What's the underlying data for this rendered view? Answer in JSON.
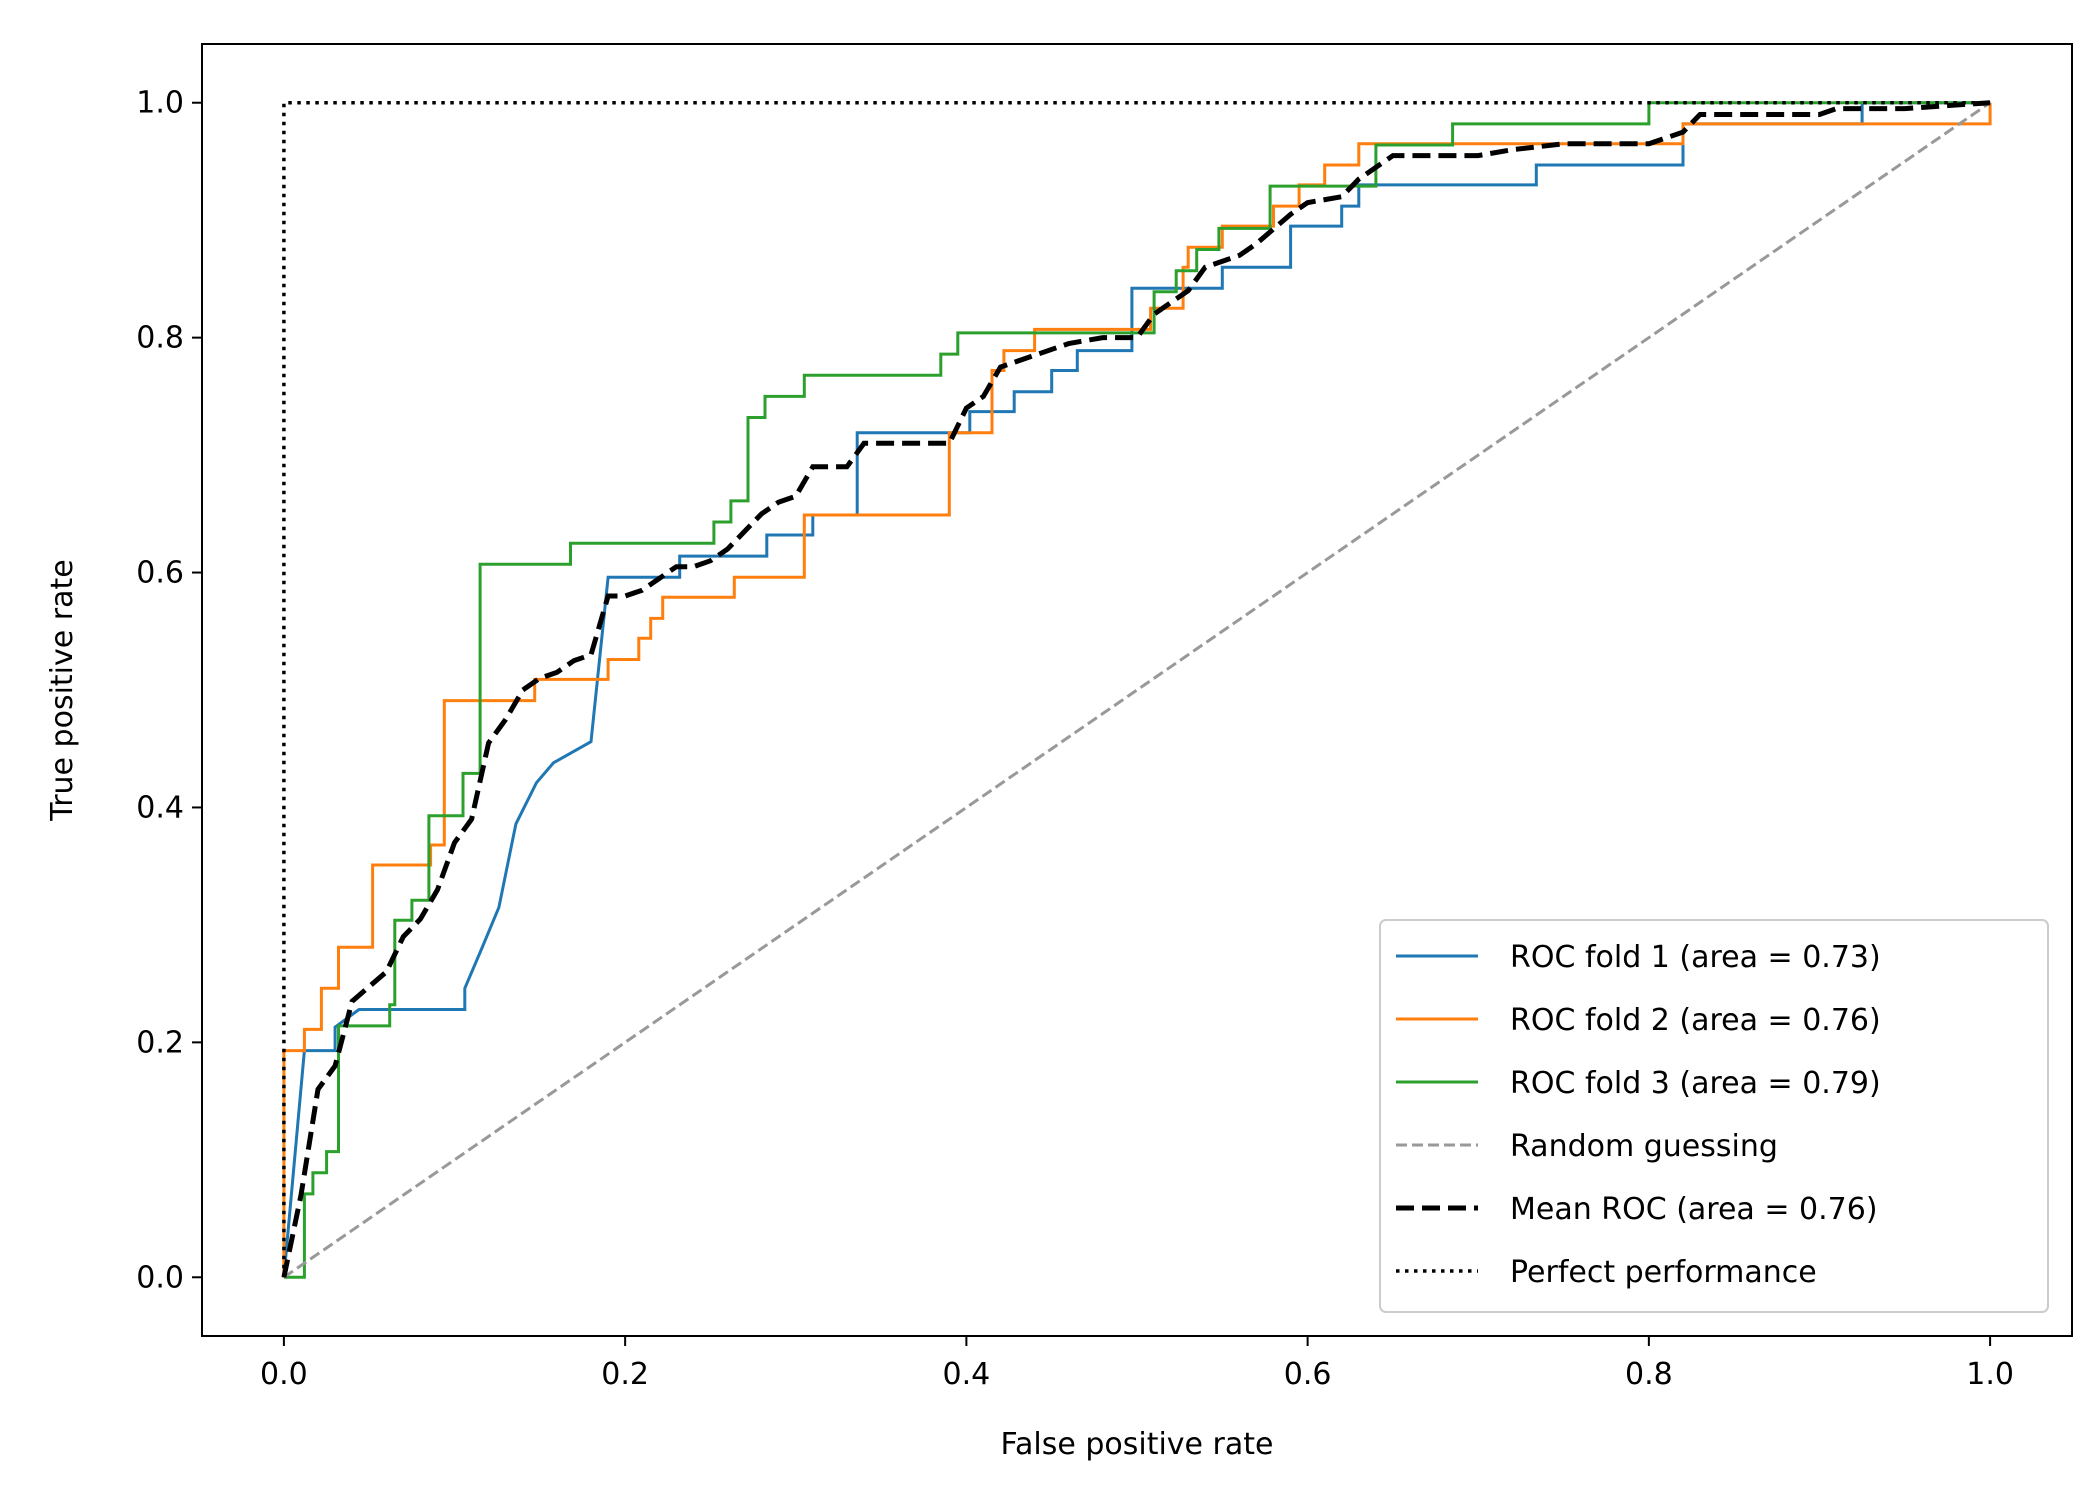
{
  "chart_data": {
    "type": "line",
    "title": "",
    "xlabel": "False positive rate",
    "ylabel": "True positive rate",
    "xlim": [
      -0.048,
      1.048
    ],
    "ylim": [
      -0.05,
      1.05
    ],
    "x_ticks": [
      "0.0",
      "0.2",
      "0.4",
      "0.6",
      "0.8",
      "1.0"
    ],
    "y_ticks": [
      "0.0",
      "0.2",
      "0.4",
      "0.6",
      "0.8",
      "1.0"
    ],
    "grid": false,
    "legend_position": "lower-right",
    "series": [
      {
        "name": "ROC fold 1 (area = 0.73)",
        "color": "#1f77b4",
        "style": "solid",
        "step": true,
        "points": [
          [
            0,
            0
          ],
          [
            0.012,
            0.193
          ],
          [
            0.03,
            0.193
          ],
          [
            0.03,
            0.213
          ],
          [
            0.044,
            0.228
          ],
          [
            0.106,
            0.228
          ],
          [
            0.106,
            0.246
          ],
          [
            0.116,
            0.28
          ],
          [
            0.126,
            0.315
          ],
          [
            0.136,
            0.386
          ],
          [
            0.148,
            0.421
          ],
          [
            0.158,
            0.438
          ],
          [
            0.18,
            0.456
          ],
          [
            0.19,
            0.596
          ],
          [
            0.232,
            0.596
          ],
          [
            0.232,
            0.614
          ],
          [
            0.283,
            0.614
          ],
          [
            0.283,
            0.632
          ],
          [
            0.31,
            0.632
          ],
          [
            0.31,
            0.649
          ],
          [
            0.336,
            0.649
          ],
          [
            0.336,
            0.719
          ],
          [
            0.402,
            0.719
          ],
          [
            0.402,
            0.737
          ],
          [
            0.428,
            0.737
          ],
          [
            0.428,
            0.754
          ],
          [
            0.45,
            0.754
          ],
          [
            0.45,
            0.772
          ],
          [
            0.465,
            0.772
          ],
          [
            0.465,
            0.789
          ],
          [
            0.497,
            0.789
          ],
          [
            0.497,
            0.842
          ],
          [
            0.508,
            0.842
          ],
          [
            0.508,
            0.842
          ],
          [
            0.55,
            0.842
          ],
          [
            0.55,
            0.86
          ],
          [
            0.59,
            0.86
          ],
          [
            0.59,
            0.895
          ],
          [
            0.62,
            0.895
          ],
          [
            0.62,
            0.912
          ],
          [
            0.63,
            0.912
          ],
          [
            0.63,
            0.93
          ],
          [
            0.734,
            0.93
          ],
          [
            0.734,
            0.947
          ],
          [
            0.82,
            0.947
          ],
          [
            0.82,
            0.982
          ],
          [
            0.925,
            0.982
          ],
          [
            0.925,
            1.0
          ],
          [
            1.0,
            1.0
          ]
        ]
      },
      {
        "name": "ROC fold 2 (area = 0.76)",
        "color": "#ff7f0e",
        "style": "solid",
        "step": true,
        "points": [
          [
            0,
            0
          ],
          [
            0,
            0.193
          ],
          [
            0.012,
            0.193
          ],
          [
            0.012,
            0.211
          ],
          [
            0.022,
            0.211
          ],
          [
            0.022,
            0.246
          ],
          [
            0.032,
            0.246
          ],
          [
            0.032,
            0.281
          ],
          [
            0.052,
            0.281
          ],
          [
            0.052,
            0.351
          ],
          [
            0.086,
            0.351
          ],
          [
            0.086,
            0.368
          ],
          [
            0.094,
            0.368
          ],
          [
            0.094,
            0.491
          ],
          [
            0.147,
            0.491
          ],
          [
            0.147,
            0.509
          ],
          [
            0.19,
            0.509
          ],
          [
            0.19,
            0.526
          ],
          [
            0.208,
            0.526
          ],
          [
            0.208,
            0.544
          ],
          [
            0.215,
            0.544
          ],
          [
            0.215,
            0.561
          ],
          [
            0.222,
            0.561
          ],
          [
            0.222,
            0.579
          ],
          [
            0.264,
            0.579
          ],
          [
            0.264,
            0.596
          ],
          [
            0.305,
            0.596
          ],
          [
            0.305,
            0.649
          ],
          [
            0.39,
            0.649
          ],
          [
            0.39,
            0.719
          ],
          [
            0.415,
            0.719
          ],
          [
            0.415,
            0.772
          ],
          [
            0.422,
            0.772
          ],
          [
            0.422,
            0.789
          ],
          [
            0.44,
            0.789
          ],
          [
            0.44,
            0.807
          ],
          [
            0.508,
            0.807
          ],
          [
            0.508,
            0.825
          ],
          [
            0.527,
            0.825
          ],
          [
            0.527,
            0.86
          ],
          [
            0.53,
            0.86
          ],
          [
            0.53,
            0.877
          ],
          [
            0.55,
            0.877
          ],
          [
            0.55,
            0.895
          ],
          [
            0.58,
            0.895
          ],
          [
            0.58,
            0.912
          ],
          [
            0.595,
            0.912
          ],
          [
            0.595,
            0.93
          ],
          [
            0.61,
            0.93
          ],
          [
            0.61,
            0.947
          ],
          [
            0.63,
            0.947
          ],
          [
            0.63,
            0.965
          ],
          [
            0.82,
            0.965
          ],
          [
            0.82,
            0.982
          ],
          [
            1.0,
            0.982
          ],
          [
            1.0,
            1.0
          ]
        ]
      },
      {
        "name": "ROC fold 3 (area = 0.79)",
        "color": "#2ca02c",
        "style": "solid",
        "step": true,
        "points": [
          [
            0,
            0
          ],
          [
            0.012,
            0
          ],
          [
            0.012,
            0.071
          ],
          [
            0.017,
            0.071
          ],
          [
            0.017,
            0.089
          ],
          [
            0.025,
            0.089
          ],
          [
            0.025,
            0.107
          ],
          [
            0.032,
            0.107
          ],
          [
            0.032,
            0.214
          ],
          [
            0.062,
            0.214
          ],
          [
            0.062,
            0.232
          ],
          [
            0.065,
            0.232
          ],
          [
            0.065,
            0.304
          ],
          [
            0.075,
            0.304
          ],
          [
            0.075,
            0.321
          ],
          [
            0.085,
            0.321
          ],
          [
            0.085,
            0.393
          ],
          [
            0.105,
            0.393
          ],
          [
            0.105,
            0.429
          ],
          [
            0.115,
            0.429
          ],
          [
            0.115,
            0.607
          ],
          [
            0.168,
            0.607
          ],
          [
            0.168,
            0.625
          ],
          [
            0.252,
            0.625
          ],
          [
            0.252,
            0.643
          ],
          [
            0.262,
            0.643
          ],
          [
            0.262,
            0.661
          ],
          [
            0.272,
            0.661
          ],
          [
            0.272,
            0.732
          ],
          [
            0.282,
            0.732
          ],
          [
            0.282,
            0.75
          ],
          [
            0.305,
            0.75
          ],
          [
            0.305,
            0.768
          ],
          [
            0.385,
            0.768
          ],
          [
            0.385,
            0.786
          ],
          [
            0.395,
            0.786
          ],
          [
            0.395,
            0.804
          ],
          [
            0.51,
            0.804
          ],
          [
            0.51,
            0.839
          ],
          [
            0.523,
            0.839
          ],
          [
            0.523,
            0.857
          ],
          [
            0.535,
            0.857
          ],
          [
            0.535,
            0.875
          ],
          [
            0.548,
            0.875
          ],
          [
            0.548,
            0.893
          ],
          [
            0.565,
            0.893
          ],
          [
            0.565,
            0.893
          ],
          [
            0.578,
            0.893
          ],
          [
            0.578,
            0.929
          ],
          [
            0.64,
            0.929
          ],
          [
            0.64,
            0.964
          ],
          [
            0.685,
            0.964
          ],
          [
            0.685,
            0.982
          ],
          [
            0.8,
            0.982
          ],
          [
            0.8,
            1.0
          ],
          [
            1.0,
            1.0
          ]
        ]
      },
      {
        "name": "Random guessing",
        "color": "#999999",
        "style": "dashed",
        "step": false,
        "points": [
          [
            0,
            0
          ],
          [
            1,
            1
          ]
        ]
      },
      {
        "name": "Mean ROC (area = 0.76)",
        "color": "#000000",
        "style": "dashed-bold",
        "step": false,
        "points": [
          [
            0,
            0
          ],
          [
            0.01,
            0.07
          ],
          [
            0.02,
            0.16
          ],
          [
            0.03,
            0.18
          ],
          [
            0.04,
            0.235
          ],
          [
            0.06,
            0.26
          ],
          [
            0.07,
            0.29
          ],
          [
            0.08,
            0.305
          ],
          [
            0.09,
            0.33
          ],
          [
            0.1,
            0.37
          ],
          [
            0.11,
            0.39
          ],
          [
            0.12,
            0.455
          ],
          [
            0.13,
            0.475
          ],
          [
            0.14,
            0.5
          ],
          [
            0.15,
            0.51
          ],
          [
            0.16,
            0.515
          ],
          [
            0.17,
            0.525
          ],
          [
            0.18,
            0.53
          ],
          [
            0.19,
            0.58
          ],
          [
            0.2,
            0.58
          ],
          [
            0.21,
            0.585
          ],
          [
            0.22,
            0.595
          ],
          [
            0.23,
            0.605
          ],
          [
            0.24,
            0.605
          ],
          [
            0.25,
            0.61
          ],
          [
            0.26,
            0.62
          ],
          [
            0.27,
            0.635
          ],
          [
            0.28,
            0.65
          ],
          [
            0.29,
            0.66
          ],
          [
            0.3,
            0.665
          ],
          [
            0.31,
            0.69
          ],
          [
            0.33,
            0.69
          ],
          [
            0.34,
            0.71
          ],
          [
            0.35,
            0.71
          ],
          [
            0.39,
            0.71
          ],
          [
            0.4,
            0.74
          ],
          [
            0.41,
            0.75
          ],
          [
            0.42,
            0.775
          ],
          [
            0.44,
            0.785
          ],
          [
            0.46,
            0.795
          ],
          [
            0.48,
            0.8
          ],
          [
            0.5,
            0.8
          ],
          [
            0.51,
            0.82
          ],
          [
            0.52,
            0.83
          ],
          [
            0.53,
            0.84
          ],
          [
            0.54,
            0.86
          ],
          [
            0.56,
            0.87
          ],
          [
            0.57,
            0.88
          ],
          [
            0.59,
            0.905
          ],
          [
            0.6,
            0.915
          ],
          [
            0.62,
            0.92
          ],
          [
            0.63,
            0.935
          ],
          [
            0.65,
            0.955
          ],
          [
            0.7,
            0.955
          ],
          [
            0.72,
            0.96
          ],
          [
            0.75,
            0.965
          ],
          [
            0.8,
            0.965
          ],
          [
            0.82,
            0.975
          ],
          [
            0.83,
            0.99
          ],
          [
            0.9,
            0.99
          ],
          [
            0.91,
            0.995
          ],
          [
            0.95,
            0.995
          ],
          [
            1.0,
            1.0
          ]
        ]
      },
      {
        "name": "Perfect performance",
        "color": "#000000",
        "style": "dotted",
        "step": false,
        "points": [
          [
            0,
            0
          ],
          [
            0,
            1
          ],
          [
            1,
            1
          ]
        ]
      }
    ]
  }
}
